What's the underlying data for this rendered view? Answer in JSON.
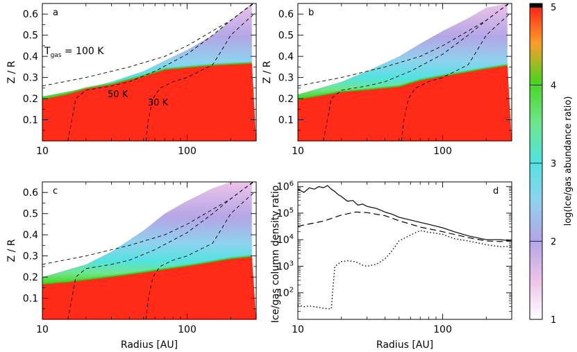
{
  "colors": {
    "scale_1": "#ffffff",
    "scale_1_5": "#ecc2ea",
    "scale_2": "#b3a6e6",
    "scale_2_5": "#8fd2ee",
    "scale_3": "#52e3e0",
    "scale_3_5": "#6fe68a",
    "scale_4": "#46d620",
    "scale_4_5": "#fd9d28",
    "scale_5": "#ff2a18",
    "scale_top": "#000000"
  },
  "panels": {
    "a": {
      "letter": "a"
    },
    "b": {
      "letter": "b"
    },
    "c": {
      "letter": "c"
    },
    "d": {
      "letter": "d"
    }
  },
  "annotations": {
    "tgas_label": "T",
    "tgas_sub": "gas",
    "tgas_value": " = 100 K",
    "label_50k": "50 K",
    "label_30k": "30 K"
  },
  "colorbar": {
    "label": "log(Ice/gas abundance ratio)",
    "ticks": [
      "1",
      "2",
      "3",
      "4",
      "5"
    ]
  },
  "chart_data": [
    {
      "panel": "a",
      "type": "heatmap",
      "xlabel": "",
      "ylabel": "Z / R",
      "xscale": "log",
      "xlim": [
        10,
        300
      ],
      "ylim": [
        0,
        0.65
      ],
      "xticks": [
        "10",
        "100"
      ],
      "yticks": [
        "0.1",
        "0.2",
        "0.3",
        "0.4",
        "0.5",
        "0.6"
      ],
      "quantity": "log(Ice/gas abundance ratio)",
      "ice_boundary": {
        "x": [
          10,
          15,
          20,
          30,
          50,
          70,
          100,
          150,
          200,
          280
        ],
        "y": [
          0.2,
          0.225,
          0.25,
          0.27,
          0.31,
          0.34,
          0.35,
          0.36,
          0.365,
          0.37
        ]
      },
      "transition_top": {
        "x": [
          10,
          20,
          30,
          50,
          70,
          100,
          150,
          200,
          280
        ],
        "y": [
          0.21,
          0.25,
          0.28,
          0.33,
          0.38,
          0.43,
          0.5,
          0.57,
          0.65
        ]
      },
      "contours": [
        {
          "label": "100 K",
          "x": [
            10,
            20,
            40,
            70,
            100,
            150,
            200,
            250,
            290
          ],
          "y": [
            0.26,
            0.3,
            0.35,
            0.4,
            0.45,
            0.52,
            0.57,
            0.62,
            0.65
          ]
        },
        {
          "label": "50 K",
          "x": [
            15,
            16,
            17,
            20,
            30,
            40,
            60,
            100,
            150,
            200,
            250,
            285
          ],
          "y": [
            0,
            0.1,
            0.2,
            0.24,
            0.26,
            0.28,
            0.33,
            0.41,
            0.5,
            0.57,
            0.62,
            0.65
          ]
        },
        {
          "label": "30 K",
          "x": [
            52,
            54,
            58,
            65,
            80,
            100,
            150,
            170,
            200,
            240,
            290
          ],
          "y": [
            0,
            0.1,
            0.2,
            0.25,
            0.28,
            0.3,
            0.36,
            0.42,
            0.5,
            0.55,
            0.6
          ]
        }
      ]
    },
    {
      "panel": "b",
      "type": "heatmap",
      "xlabel": "",
      "ylabel": "Z / R",
      "xscale": "log",
      "xlim": [
        10,
        300
      ],
      "ylim": [
        0,
        0.65
      ],
      "xticks": [
        "10",
        "100"
      ],
      "yticks": [
        "0.1",
        "0.2",
        "0.3",
        "0.4",
        "0.5",
        "0.6"
      ],
      "quantity": "log(Ice/gas abundance ratio)",
      "ice_boundary": {
        "x": [
          10,
          15,
          20,
          30,
          50,
          70,
          100,
          150,
          200,
          280
        ],
        "y": [
          0.2,
          0.22,
          0.235,
          0.245,
          0.26,
          0.29,
          0.31,
          0.33,
          0.345,
          0.36
        ]
      },
      "transition_top": {
        "x": [
          10,
          20,
          30,
          50,
          70,
          100,
          150,
          200,
          280
        ],
        "y": [
          0.22,
          0.28,
          0.33,
          0.4,
          0.46,
          0.52,
          0.58,
          0.63,
          0.65
        ]
      },
      "contours": [
        {
          "label": "100 K",
          "x": [
            10,
            20,
            40,
            70,
            100,
            150,
            200,
            250,
            290
          ],
          "y": [
            0.26,
            0.3,
            0.35,
            0.4,
            0.45,
            0.52,
            0.57,
            0.62,
            0.65
          ]
        },
        {
          "label": "50 K",
          "x": [
            15,
            16,
            17,
            20,
            30,
            40,
            60,
            100,
            150,
            200,
            250,
            285
          ],
          "y": [
            0,
            0.1,
            0.2,
            0.24,
            0.26,
            0.28,
            0.33,
            0.41,
            0.5,
            0.57,
            0.62,
            0.65
          ]
        },
        {
          "label": "30 K",
          "x": [
            52,
            54,
            58,
            65,
            80,
            100,
            150,
            170,
            200,
            240,
            290
          ],
          "y": [
            0,
            0.1,
            0.2,
            0.25,
            0.28,
            0.3,
            0.36,
            0.42,
            0.5,
            0.55,
            0.6
          ]
        }
      ]
    },
    {
      "panel": "c",
      "type": "heatmap",
      "xlabel": "Radius [AU]",
      "ylabel": "Z / R",
      "xscale": "log",
      "xlim": [
        10,
        300
      ],
      "ylim": [
        0,
        0.65
      ],
      "xticks": [
        "10",
        "100"
      ],
      "yticks": [
        "0.1",
        "0.2",
        "0.3",
        "0.4",
        "0.5",
        "0.6"
      ],
      "quantity": "log(Ice/gas abundance ratio)",
      "ice_boundary": {
        "x": [
          10,
          15,
          20,
          30,
          50,
          70,
          100,
          150,
          200,
          280
        ],
        "y": [
          0.17,
          0.18,
          0.19,
          0.205,
          0.225,
          0.24,
          0.255,
          0.275,
          0.29,
          0.3
        ]
      },
      "transition_top": {
        "x": [
          10,
          20,
          30,
          50,
          70,
          100,
          150,
          200,
          280
        ],
        "y": [
          0.2,
          0.26,
          0.32,
          0.42,
          0.5,
          0.56,
          0.62,
          0.65,
          0.65
        ]
      },
      "contours": [
        {
          "label": "100 K",
          "x": [
            10,
            20,
            40,
            70,
            100,
            150,
            200,
            250,
            290
          ],
          "y": [
            0.26,
            0.3,
            0.35,
            0.4,
            0.45,
            0.52,
            0.57,
            0.62,
            0.65
          ]
        },
        {
          "label": "50 K",
          "x": [
            15,
            16,
            17,
            20,
            30,
            40,
            60,
            100,
            150,
            200,
            250,
            285
          ],
          "y": [
            0,
            0.1,
            0.2,
            0.24,
            0.26,
            0.28,
            0.33,
            0.41,
            0.5,
            0.57,
            0.62,
            0.65
          ]
        },
        {
          "label": "30 K",
          "x": [
            52,
            54,
            58,
            65,
            80,
            100,
            150,
            170,
            200,
            240,
            290
          ],
          "y": [
            0,
            0.1,
            0.2,
            0.25,
            0.28,
            0.3,
            0.36,
            0.42,
            0.5,
            0.55,
            0.6
          ]
        }
      ]
    },
    {
      "panel": "d",
      "type": "line",
      "xlabel": "Radius [AU]",
      "ylabel": "Ice/gas column density ratio",
      "xscale": "log",
      "yscale": "log",
      "xlim": [
        10,
        300
      ],
      "ylim": [
        10,
        1500000
      ],
      "xticks": [
        "10",
        "100"
      ],
      "yticks": [
        "10^2",
        "10^3",
        "10^4",
        "10^5",
        "10^6"
      ],
      "series": [
        {
          "style": "solid",
          "x": [
            10,
            11,
            12,
            13,
            14,
            15,
            16,
            17,
            18,
            19,
            20,
            22,
            24,
            26,
            28,
            30,
            35,
            40,
            45,
            50,
            60,
            70,
            80,
            100,
            120,
            150,
            200,
            250,
            300
          ],
          "y": [
            800000,
            600000,
            900000,
            800000,
            1000000,
            900000,
            1100000,
            800000,
            650000,
            500000,
            420000,
            280000,
            300000,
            200000,
            220000,
            180000,
            150000,
            110000,
            90000,
            70000,
            55000,
            45000,
            38000,
            28000,
            20000,
            14000,
            10000,
            10000,
            9000
          ]
        },
        {
          "style": "dashed",
          "x": [
            10,
            15,
            20,
            25,
            30,
            40,
            50,
            70,
            100,
            150,
            200,
            250,
            300
          ],
          "y": [
            32000,
            50000,
            85000,
            110000,
            105000,
            80000,
            52000,
            30000,
            20000,
            12000,
            9000,
            8500,
            9000
          ]
        },
        {
          "style": "dotted",
          "x": [
            10,
            11,
            12,
            14,
            16,
            17,
            18,
            20,
            22,
            25,
            28,
            30,
            35,
            40,
            45,
            50,
            60,
            70,
            80,
            100,
            120,
            150,
            200,
            250,
            300
          ],
          "y": [
            35,
            30,
            32,
            28,
            25,
            25,
            1000,
            1500,
            1600,
            1500,
            1100,
            1000,
            1200,
            1900,
            4000,
            9000,
            15000,
            22000,
            19000,
            16000,
            11000,
            9000,
            6500,
            5500,
            5500
          ]
        }
      ]
    }
  ]
}
